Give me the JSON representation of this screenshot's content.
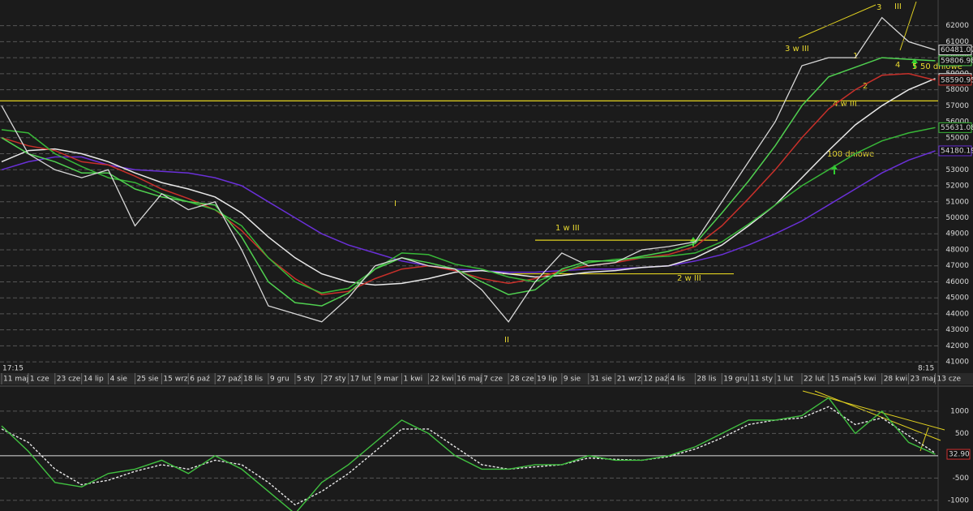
{
  "chart_data": {
    "type": "line",
    "categories": [
      "11 maj",
      "1 cze",
      "23 cze",
      "14 lip",
      "4 sie",
      "25 sie",
      "15 wrz",
      "6 paź",
      "27 paź",
      "18 lis",
      "9 gru",
      "5 sty",
      "27 sty",
      "17 lut",
      "9 mar",
      "1 kwi",
      "22 kwi",
      "16 maj",
      "7 cze",
      "28 cze",
      "19 lip",
      "9 sie",
      "31 sie",
      "21 wrz",
      "12 paź",
      "4 lis",
      "28 lis",
      "19 gru",
      "11 sty",
      "1 lut",
      "22 lut",
      "15 mar",
      "5 kwi",
      "28 kwi",
      "23 maj",
      "13 cze"
    ],
    "time_labels": [
      "17:15",
      "8:15"
    ],
    "price_panel": {
      "ylim": [
        40400,
        63500
      ],
      "yticks": [
        41000,
        42000,
        43000,
        44000,
        45000,
        46000,
        47000,
        48000,
        49000,
        50000,
        51000,
        52000,
        53000,
        54000,
        55000,
        56000,
        57000,
        58000,
        59000,
        60000,
        61000,
        62000
      ],
      "grid": true,
      "levels": [
        57300,
        48600,
        46500
      ],
      "levels_color": "#e0d020",
      "series": [
        {
          "color": "#6a30d8",
          "values": [
            53000,
            53500,
            53800,
            53800,
            53300,
            53000,
            52900,
            52800,
            52500,
            52000,
            51000,
            50000,
            49000,
            48300,
            47800,
            47300,
            47000,
            46800,
            46700,
            46600,
            46600,
            46700,
            46800,
            46800,
            46900,
            47000,
            47300,
            47700,
            48300,
            49000,
            49800,
            50800,
            51800,
            52800,
            53600,
            54180.19
          ]
        },
        {
          "color": "#e8e8e8",
          "values": [
            53500,
            54200,
            54300,
            54000,
            53500,
            52800,
            52200,
            51800,
            51300,
            50300,
            48800,
            47500,
            46500,
            46000,
            45800,
            45900,
            46200,
            46600,
            46700,
            46500,
            46300,
            46400,
            46600,
            46700,
            46900,
            47000,
            47500,
            48300,
            49500,
            50800,
            52500,
            54200,
            55800,
            57000,
            58000,
            58700
          ]
        },
        {
          "color": "#c8302a",
          "values": [
            55000,
            54500,
            54200,
            53500,
            53300,
            52600,
            51800,
            51200,
            50500,
            49200,
            47500,
            46200,
            45200,
            45400,
            46200,
            46800,
            47000,
            46700,
            46200,
            45900,
            46200,
            46700,
            47000,
            47200,
            47500,
            47700,
            48200,
            49500,
            51200,
            53000,
            55000,
            56800,
            58000,
            58900,
            59000,
            58590.95
          ]
        },
        {
          "color": "#38b838",
          "values": [
            55500,
            55300,
            54000,
            53200,
            52500,
            52200,
            51500,
            51000,
            50500,
            49500,
            47500,
            46000,
            45300,
            45600,
            46800,
            47800,
            47700,
            47100,
            46800,
            46300,
            46000,
            46600,
            47200,
            47400,
            47500,
            47600,
            47800,
            48500,
            49600,
            50800,
            52000,
            53000,
            54000,
            54800,
            55300,
            55631.08
          ]
        },
        {
          "color": "#50d050",
          "values": [
            55000,
            54000,
            53500,
            52800,
            52800,
            51800,
            51300,
            51000,
            50800,
            48800,
            46000,
            44700,
            44500,
            45300,
            46800,
            47500,
            47200,
            46800,
            46000,
            45200,
            45500,
            46800,
            47300,
            47300,
            47600,
            47900,
            48400,
            50300,
            52300,
            54500,
            57000,
            58800,
            59400,
            60000,
            59900,
            59806.98
          ]
        },
        {
          "color": "#d8d8d8",
          "values": [
            57000,
            54000,
            53000,
            52500,
            53000,
            49500,
            51500,
            50500,
            51000,
            48000,
            44500,
            44000,
            43500,
            45000,
            47000,
            47500,
            47000,
            46800,
            45500,
            43500,
            46000,
            47800,
            47000,
            47200,
            48000,
            48200,
            48500,
            51000,
            53500,
            56000,
            59500,
            60000,
            60000,
            62500,
            61000,
            60481.07
          ]
        }
      ]
    },
    "oscillator": {
      "ylim": [
        -1240,
        1490
      ],
      "yticks": [
        -1000,
        -500,
        500,
        1000
      ],
      "zero_line": 0,
      "series": [
        {
          "color": "#e8e8e8",
          "dashed": true,
          "values": [
            600,
            300,
            -300,
            -650,
            -550,
            -350,
            -200,
            -300,
            -100,
            -200,
            -600,
            -1100,
            -800,
            -400,
            100,
            600,
            600,
            200,
            -200,
            -300,
            -250,
            -200,
            -50,
            -80,
            -100,
            -20,
            150,
            400,
            700,
            800,
            850,
            1100,
            700,
            850,
            450,
            60
          ]
        },
        {
          "color": "#40c040",
          "values": [
            670,
            100,
            -600,
            -700,
            -400,
            -300,
            -100,
            -400,
            0,
            -300,
            -800,
            -1300,
            -600,
            -200,
            300,
            800,
            500,
            0,
            -300,
            -300,
            -200,
            -200,
            0,
            -100,
            -100,
            0,
            200,
            500,
            800,
            800,
            900,
            1300,
            500,
            1000,
            300,
            32.9
          ],
          "last_label": "32.90"
        }
      ]
    },
    "annotations": [
      "3 w III",
      "1",
      "2",
      "3",
      "III",
      "4",
      "5",
      "50 dniowe",
      "4 w III",
      "100 dniowe",
      "1 w III",
      "2 w III",
      "I",
      "II"
    ]
  }
}
